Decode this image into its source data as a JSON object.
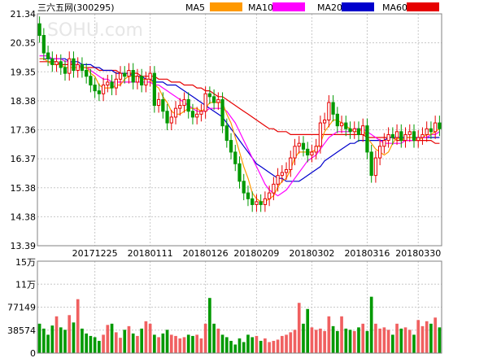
{
  "header": {
    "title": "三六五网(300295)",
    "watermark": "SOHU.com"
  },
  "legend": [
    {
      "name": "MA5",
      "color": "#ff9900"
    },
    {
      "name": "MA10",
      "color": "#ff00ff"
    },
    {
      "name": "MA20",
      "color": "#0000cc"
    },
    {
      "name": "MA60",
      "color": "#e60000"
    }
  ],
  "colors": {
    "up": "#e60000",
    "down": "#009900",
    "grid": "#c8c8c8",
    "frame": "#808080",
    "vol_up": "#f06060",
    "vol_down": "#009900"
  },
  "chart_data": [
    {
      "type": "candlestick",
      "title": "",
      "y_ticks": [
        "21.34",
        "20.35",
        "19.35",
        "18.38",
        "17.36",
        "16.37",
        "15.38",
        "14.38",
        "13.39"
      ],
      "ylim": [
        13.39,
        21.34
      ],
      "x_ticks": [
        {
          "label": "20171225",
          "index": 13
        },
        {
          "label": "20180111",
          "index": 26
        },
        {
          "label": "20180126",
          "index": 39
        },
        {
          "label": "20180209",
          "index": 51
        },
        {
          "label": "20180302",
          "index": 64
        },
        {
          "label": "20180316",
          "index": 77
        },
        {
          "label": "20180330",
          "index": 89
        }
      ],
      "close": [
        20.6,
        20.0,
        19.8,
        19.6,
        19.7,
        19.5,
        19.3,
        19.8,
        19.4,
        19.6,
        19.4,
        19.2,
        18.9,
        18.7,
        18.6,
        18.9,
        19.0,
        18.8,
        19.1,
        19.3,
        19.2,
        19.4,
        19.0,
        19.2,
        18.9,
        19.1,
        19.3,
        18.2,
        18.4,
        18.0,
        17.6,
        17.8,
        18.1,
        18.2,
        18.4,
        18.0,
        17.8,
        17.9,
        18.0,
        18.6,
        18.5,
        18.3,
        18.4,
        17.5,
        17.0,
        16.6,
        16.2,
        15.6,
        15.2,
        15.0,
        14.8,
        14.9,
        14.8,
        15.0,
        15.2,
        15.5,
        15.8,
        15.9,
        16.0,
        16.4,
        16.8,
        16.9,
        16.7,
        16.5,
        16.6,
        16.8,
        17.6,
        17.7,
        18.3,
        17.9,
        17.5,
        17.6,
        17.4,
        17.3,
        17.4,
        17.2,
        17.5,
        16.6,
        15.8,
        16.4,
        16.8,
        17.0,
        17.2,
        17.1,
        17.3,
        17.0,
        17.2,
        17.3,
        17.0,
        17.1,
        17.2,
        17.4,
        17.3,
        17.6,
        17.4
      ],
      "ma5": [
        19.8,
        19.8,
        19.7,
        19.6,
        19.6,
        19.6,
        19.5,
        19.5,
        19.5,
        19.5,
        19.5,
        19.5,
        19.3,
        19.2,
        18.9,
        18.8,
        18.8,
        18.8,
        18.9,
        18.9,
        19.1,
        19.2,
        19.2,
        19.2,
        19.1,
        19.1,
        19.1,
        18.9,
        18.8,
        18.5,
        18.3,
        18.0,
        17.9,
        17.9,
        18.0,
        18.1,
        18.1,
        18.1,
        18.0,
        18.1,
        18.3,
        18.3,
        18.3,
        18.3,
        17.9,
        17.6,
        17.1,
        16.6,
        16.1,
        15.7,
        15.2,
        15.0,
        14.9,
        14.9,
        15.0,
        15.1,
        15.4,
        15.6,
        15.7,
        16.0,
        16.4,
        16.6,
        16.6,
        16.6,
        16.6,
        16.7,
        16.9,
        17.3,
        17.5,
        17.7,
        17.7,
        17.6,
        17.5,
        17.4,
        17.3,
        17.3,
        17.4,
        17.1,
        16.9,
        16.7,
        16.6,
        16.5,
        16.6,
        16.9,
        17.1,
        17.0,
        17.1,
        17.1,
        17.1,
        17.0,
        17.1,
        17.2,
        17.2,
        17.3,
        17.4
      ],
      "ma10": [
        19.9,
        19.9,
        19.9,
        19.8,
        19.8,
        19.8,
        19.7,
        19.7,
        19.6,
        19.6,
        19.5,
        19.5,
        19.4,
        19.3,
        19.2,
        19.1,
        19.1,
        19.0,
        19.0,
        19.0,
        19.0,
        19.0,
        19.0,
        19.0,
        19.0,
        19.0,
        19.0,
        18.9,
        18.9,
        18.8,
        18.7,
        18.6,
        18.5,
        18.4,
        18.3,
        18.2,
        18.1,
        18.0,
        18.0,
        18.0,
        18.1,
        18.1,
        18.1,
        18.1,
        18.0,
        17.8,
        17.6,
        17.3,
        17.0,
        16.7,
        16.4,
        16.1,
        15.8,
        15.5,
        15.3,
        15.2,
        15.1,
        15.2,
        15.3,
        15.5,
        15.7,
        15.9,
        16.1,
        16.3,
        16.4,
        16.5,
        16.7,
        16.9,
        17.1,
        17.2,
        17.3,
        17.3,
        17.3,
        17.3,
        17.4,
        17.4,
        17.4,
        17.3,
        17.2,
        17.1,
        17.0,
        16.9,
        16.9,
        16.9,
        16.9,
        16.9,
        17.0,
        17.0,
        17.0,
        17.1,
        17.1,
        17.1,
        17.2,
        17.2,
        17.3
      ],
      "ma20": [
        19.8,
        19.8,
        19.8,
        19.8,
        19.8,
        19.8,
        19.8,
        19.7,
        19.7,
        19.7,
        19.6,
        19.6,
        19.6,
        19.5,
        19.5,
        19.4,
        19.4,
        19.4,
        19.3,
        19.3,
        19.3,
        19.3,
        19.2,
        19.2,
        19.2,
        19.1,
        19.1,
        19.0,
        19.0,
        19.0,
        18.9,
        18.9,
        18.9,
        18.8,
        18.7,
        18.6,
        18.5,
        18.4,
        18.3,
        18.2,
        18.1,
        18.0,
        17.9,
        17.8,
        17.6,
        17.4,
        17.2,
        17.0,
        16.8,
        16.6,
        16.4,
        16.2,
        16.1,
        16.0,
        15.9,
        15.8,
        15.7,
        15.7,
        15.6,
        15.6,
        15.6,
        15.6,
        15.7,
        15.8,
        15.9,
        16.0,
        16.1,
        16.3,
        16.4,
        16.5,
        16.6,
        16.7,
        16.8,
        16.9,
        16.9,
        17.0,
        17.0,
        17.0,
        17.0,
        17.0,
        17.0,
        17.0,
        17.1,
        17.1,
        17.1,
        17.1,
        17.1,
        17.1,
        17.1,
        17.1,
        17.1,
        17.1,
        17.1,
        17.1,
        17.1
      ],
      "ma60": [
        19.7,
        19.7,
        19.7,
        19.7,
        19.7,
        19.6,
        19.6,
        19.6,
        19.6,
        19.6,
        19.5,
        19.5,
        19.5,
        19.5,
        19.4,
        19.4,
        19.4,
        19.4,
        19.4,
        19.3,
        19.3,
        19.3,
        19.3,
        19.3,
        19.2,
        19.2,
        19.2,
        19.2,
        19.1,
        19.1,
        19.1,
        19.0,
        19.0,
        19.0,
        18.9,
        18.9,
        18.9,
        18.8,
        18.8,
        18.7,
        18.7,
        18.6,
        18.5,
        18.5,
        18.4,
        18.3,
        18.2,
        18.1,
        18.0,
        17.9,
        17.8,
        17.7,
        17.6,
        17.5,
        17.4,
        17.4,
        17.3,
        17.3,
        17.3,
        17.2,
        17.2,
        17.2,
        17.2,
        17.2,
        17.2,
        17.2,
        17.2,
        17.2,
        17.2,
        17.2,
        17.2,
        17.2,
        17.2,
        17.2,
        17.2,
        17.2,
        17.2,
        17.1,
        17.1,
        17.1,
        17.1,
        17.1,
        17.1,
        17.1,
        17.0,
        17.0,
        17.0,
        17.0,
        17.0,
        17.0,
        17.0,
        17.0,
        17.0,
        16.9,
        16.9
      ]
    },
    {
      "type": "bar",
      "title": "",
      "y_ticks": [
        "15万",
        "11万",
        "77149",
        "38574",
        "0"
      ],
      "ylim": [
        0,
        150000
      ],
      "volume": [
        48000,
        40000,
        30000,
        45000,
        60000,
        42000,
        38000,
        62000,
        50000,
        88000,
        40000,
        32000,
        28000,
        26000,
        20000,
        30000,
        46000,
        48000,
        34000,
        25000,
        38000,
        44000,
        32000,
        28000,
        40000,
        52000,
        48000,
        30000,
        26000,
        32000,
        38000,
        30000,
        28000,
        24000,
        26000,
        30000,
        28000,
        30000,
        24000,
        48000,
        90000,
        48000,
        40000,
        30000,
        26000,
        20000,
        14000,
        24000,
        18000,
        30000,
        26000,
        28000,
        20000,
        24000,
        18000,
        20000,
        22000,
        28000,
        30000,
        34000,
        38000,
        82000,
        48000,
        72000,
        42000,
        38000,
        40000,
        36000,
        60000,
        44000,
        36000,
        60000,
        40000,
        38000,
        36000,
        42000,
        48000,
        36000,
        92000,
        48000,
        40000,
        42000,
        38000,
        30000,
        48000,
        40000,
        42000,
        38000,
        30000,
        54000,
        44000,
        52000,
        48000,
        58000,
        42000
      ]
    }
  ]
}
